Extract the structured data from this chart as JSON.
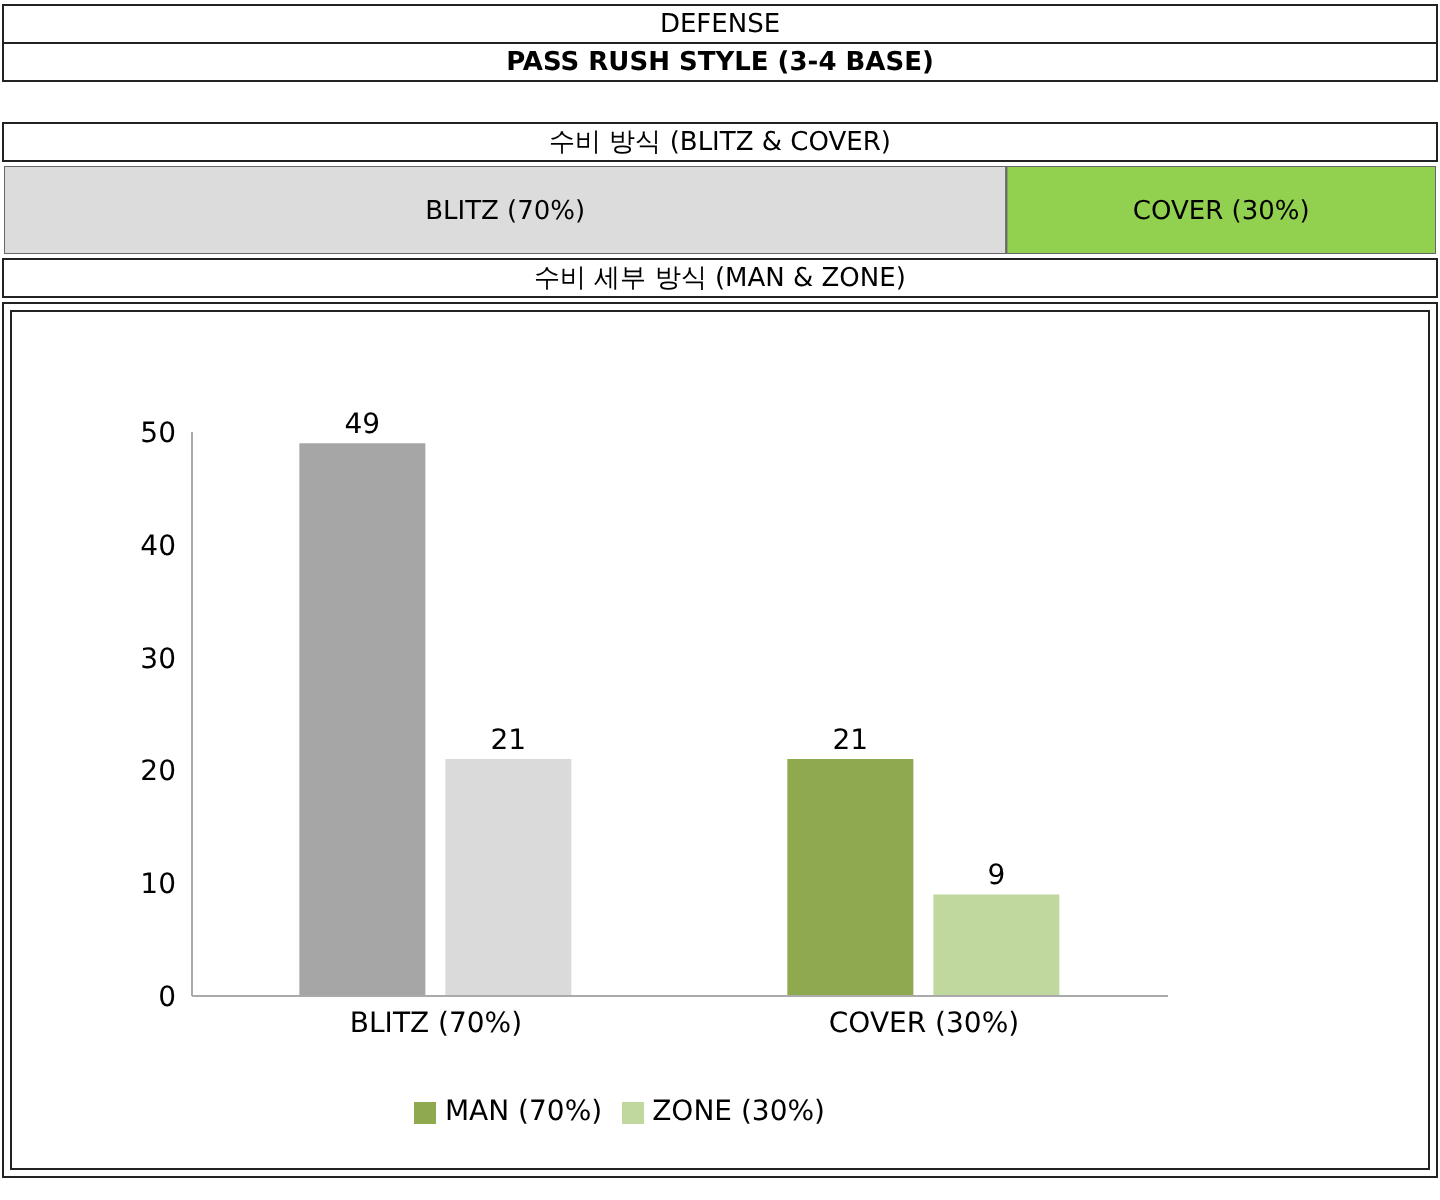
{
  "chart_data": [
    {
      "type": "other",
      "title": "DEFENSE",
      "subtitle": "PASS RUSH STYLE (3-4 BASE)"
    },
    {
      "type": "bar",
      "title": "수비 방식 (BLITZ & COVER)",
      "orientation": "horizontal",
      "stacked": true,
      "categories": [
        null
      ],
      "tick_labels": false,
      "series": [
        {
          "color": "#dcdcdc",
          "values": [
            70
          ],
          "value_labels": [
            "BLITZ (70%)"
          ]
        },
        {
          "color": "#92d050",
          "values": [
            30
          ],
          "value_labels": [
            "COVER (30%)"
          ]
        }
      ]
    },
    {
      "type": "bar",
      "title": "수비 세부 방식 (MAN & ZONE)",
      "categories": [
        "BLITZ (70%)",
        "COVER (30%)"
      ],
      "ylim": [
        0,
        50
      ],
      "yticks": [
        0,
        10,
        20,
        30,
        40,
        50
      ],
      "data_labels": true,
      "legend": "bottom",
      "series": [
        {
          "name": "MAN (70%)",
          "color": "#8faa4e",
          "colors": [
            "#a6a6a6",
            "#8faa4e"
          ],
          "values": [
            49,
            21
          ]
        },
        {
          "name": "ZONE (30%)",
          "color": "#c0d79e",
          "colors": [
            "#dadada",
            "#c0d79e"
          ],
          "values": [
            21,
            9
          ]
        }
      ]
    }
  ]
}
